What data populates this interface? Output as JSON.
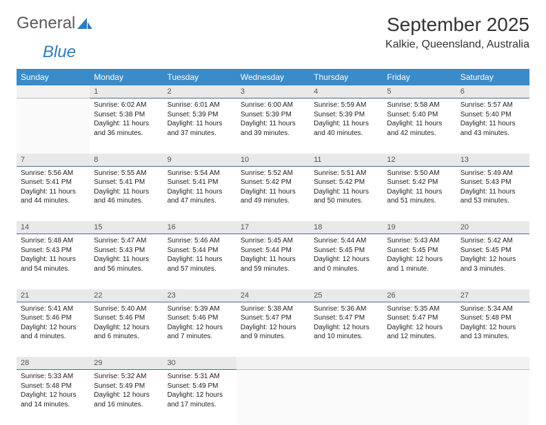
{
  "logo": {
    "text1": "General",
    "text2": "Blue"
  },
  "title": "September 2025",
  "location": "Kalkie, Queensland, Australia",
  "colors": {
    "header_bg": "#3a8bc9",
    "header_text": "#ffffff",
    "daynum_bg": "#e9e9e9",
    "daynum_border": "#4a6d8a",
    "empty_bg": "#f2f2f2",
    "logo_gray": "#5a5a5a",
    "logo_blue": "#2f7bbf"
  },
  "weekdays": [
    "Sunday",
    "Monday",
    "Tuesday",
    "Wednesday",
    "Thursday",
    "Friday",
    "Saturday"
  ],
  "weeks": [
    [
      {
        "num": "",
        "lines": []
      },
      {
        "num": "1",
        "lines": [
          "Sunrise: 6:02 AM",
          "Sunset: 5:38 PM",
          "Daylight: 11 hours",
          "and 36 minutes."
        ]
      },
      {
        "num": "2",
        "lines": [
          "Sunrise: 6:01 AM",
          "Sunset: 5:39 PM",
          "Daylight: 11 hours",
          "and 37 minutes."
        ]
      },
      {
        "num": "3",
        "lines": [
          "Sunrise: 6:00 AM",
          "Sunset: 5:39 PM",
          "Daylight: 11 hours",
          "and 39 minutes."
        ]
      },
      {
        "num": "4",
        "lines": [
          "Sunrise: 5:59 AM",
          "Sunset: 5:39 PM",
          "Daylight: 11 hours",
          "and 40 minutes."
        ]
      },
      {
        "num": "5",
        "lines": [
          "Sunrise: 5:58 AM",
          "Sunset: 5:40 PM",
          "Daylight: 11 hours",
          "and 42 minutes."
        ]
      },
      {
        "num": "6",
        "lines": [
          "Sunrise: 5:57 AM",
          "Sunset: 5:40 PM",
          "Daylight: 11 hours",
          "and 43 minutes."
        ]
      }
    ],
    [
      {
        "num": "7",
        "lines": [
          "Sunrise: 5:56 AM",
          "Sunset: 5:41 PM",
          "Daylight: 11 hours",
          "and 44 minutes."
        ]
      },
      {
        "num": "8",
        "lines": [
          "Sunrise: 5:55 AM",
          "Sunset: 5:41 PM",
          "Daylight: 11 hours",
          "and 46 minutes."
        ]
      },
      {
        "num": "9",
        "lines": [
          "Sunrise: 5:54 AM",
          "Sunset: 5:41 PM",
          "Daylight: 11 hours",
          "and 47 minutes."
        ]
      },
      {
        "num": "10",
        "lines": [
          "Sunrise: 5:52 AM",
          "Sunset: 5:42 PM",
          "Daylight: 11 hours",
          "and 49 minutes."
        ]
      },
      {
        "num": "11",
        "lines": [
          "Sunrise: 5:51 AM",
          "Sunset: 5:42 PM",
          "Daylight: 11 hours",
          "and 50 minutes."
        ]
      },
      {
        "num": "12",
        "lines": [
          "Sunrise: 5:50 AM",
          "Sunset: 5:42 PM",
          "Daylight: 11 hours",
          "and 51 minutes."
        ]
      },
      {
        "num": "13",
        "lines": [
          "Sunrise: 5:49 AM",
          "Sunset: 5:43 PM",
          "Daylight: 11 hours",
          "and 53 minutes."
        ]
      }
    ],
    [
      {
        "num": "14",
        "lines": [
          "Sunrise: 5:48 AM",
          "Sunset: 5:43 PM",
          "Daylight: 11 hours",
          "and 54 minutes."
        ]
      },
      {
        "num": "15",
        "lines": [
          "Sunrise: 5:47 AM",
          "Sunset: 5:43 PM",
          "Daylight: 11 hours",
          "and 56 minutes."
        ]
      },
      {
        "num": "16",
        "lines": [
          "Sunrise: 5:46 AM",
          "Sunset: 5:44 PM",
          "Daylight: 11 hours",
          "and 57 minutes."
        ]
      },
      {
        "num": "17",
        "lines": [
          "Sunrise: 5:45 AM",
          "Sunset: 5:44 PM",
          "Daylight: 11 hours",
          "and 59 minutes."
        ]
      },
      {
        "num": "18",
        "lines": [
          "Sunrise: 5:44 AM",
          "Sunset: 5:45 PM",
          "Daylight: 12 hours",
          "and 0 minutes."
        ]
      },
      {
        "num": "19",
        "lines": [
          "Sunrise: 5:43 AM",
          "Sunset: 5:45 PM",
          "Daylight: 12 hours",
          "and 1 minute."
        ]
      },
      {
        "num": "20",
        "lines": [
          "Sunrise: 5:42 AM",
          "Sunset: 5:45 PM",
          "Daylight: 12 hours",
          "and 3 minutes."
        ]
      }
    ],
    [
      {
        "num": "21",
        "lines": [
          "Sunrise: 5:41 AM",
          "Sunset: 5:46 PM",
          "Daylight: 12 hours",
          "and 4 minutes."
        ]
      },
      {
        "num": "22",
        "lines": [
          "Sunrise: 5:40 AM",
          "Sunset: 5:46 PM",
          "Daylight: 12 hours",
          "and 6 minutes."
        ]
      },
      {
        "num": "23",
        "lines": [
          "Sunrise: 5:39 AM",
          "Sunset: 5:46 PM",
          "Daylight: 12 hours",
          "and 7 minutes."
        ]
      },
      {
        "num": "24",
        "lines": [
          "Sunrise: 5:38 AM",
          "Sunset: 5:47 PM",
          "Daylight: 12 hours",
          "and 9 minutes."
        ]
      },
      {
        "num": "25",
        "lines": [
          "Sunrise: 5:36 AM",
          "Sunset: 5:47 PM",
          "Daylight: 12 hours",
          "and 10 minutes."
        ]
      },
      {
        "num": "26",
        "lines": [
          "Sunrise: 5:35 AM",
          "Sunset: 5:47 PM",
          "Daylight: 12 hours",
          "and 12 minutes."
        ]
      },
      {
        "num": "27",
        "lines": [
          "Sunrise: 5:34 AM",
          "Sunset: 5:48 PM",
          "Daylight: 12 hours",
          "and 13 minutes."
        ]
      }
    ],
    [
      {
        "num": "28",
        "lines": [
          "Sunrise: 5:33 AM",
          "Sunset: 5:48 PM",
          "Daylight: 12 hours",
          "and 14 minutes."
        ]
      },
      {
        "num": "29",
        "lines": [
          "Sunrise: 5:32 AM",
          "Sunset: 5:49 PM",
          "Daylight: 12 hours",
          "and 16 minutes."
        ]
      },
      {
        "num": "30",
        "lines": [
          "Sunrise: 5:31 AM",
          "Sunset: 5:49 PM",
          "Daylight: 12 hours",
          "and 17 minutes."
        ]
      },
      {
        "num": "",
        "lines": []
      },
      {
        "num": "",
        "lines": []
      },
      {
        "num": "",
        "lines": []
      },
      {
        "num": "",
        "lines": []
      }
    ]
  ]
}
